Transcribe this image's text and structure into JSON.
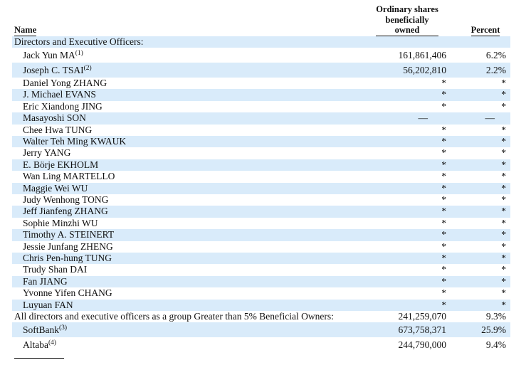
{
  "headers": {
    "name": "Name",
    "shares_line1": "Ordinary shares",
    "shares_line2": "beneficially",
    "shares_line3": "owned",
    "percent": "Percent"
  },
  "section_title": "Directors and Executive Officers:",
  "rows": [
    {
      "name": "Jack Yun MA",
      "sup": "(1)",
      "shares": "161,861,406",
      "percent": "6.2%"
    },
    {
      "name": "Joseph C. TSAI",
      "sup": "(2)",
      "shares": "56,202,810",
      "percent": "2.2%"
    },
    {
      "name": "Daniel Yong ZHANG",
      "sup": "",
      "shares": "*",
      "percent": "*"
    },
    {
      "name": "J. Michael EVANS",
      "sup": "",
      "shares": "*",
      "percent": "*"
    },
    {
      "name": "Eric Xiandong JING",
      "sup": "",
      "shares": "*",
      "percent": "*"
    },
    {
      "name": "Masayoshi SON",
      "sup": "",
      "shares": "—",
      "percent": "—"
    },
    {
      "name": "Chee Hwa TUNG",
      "sup": "",
      "shares": "*",
      "percent": "*"
    },
    {
      "name": "Walter Teh Ming KWAUK",
      "sup": "",
      "shares": "*",
      "percent": "*"
    },
    {
      "name": "Jerry YANG",
      "sup": "",
      "shares": "*",
      "percent": "*"
    },
    {
      "name": "E. Börje EKHOLM",
      "sup": "",
      "shares": "*",
      "percent": "*"
    },
    {
      "name": "Wan Ling MARTELLO",
      "sup": "",
      "shares": "*",
      "percent": "*"
    },
    {
      "name": "Maggie Wei WU",
      "sup": "",
      "shares": "*",
      "percent": "*"
    },
    {
      "name": "Judy Wenhong TONG",
      "sup": "",
      "shares": "*",
      "percent": "*"
    },
    {
      "name": "Jeff Jianfeng ZHANG",
      "sup": "",
      "shares": "*",
      "percent": "*"
    },
    {
      "name": "Sophie Minzhi WU",
      "sup": "",
      "shares": "*",
      "percent": "*"
    },
    {
      "name": "Timothy A. STEINERT",
      "sup": "",
      "shares": "*",
      "percent": "*"
    },
    {
      "name": "Jessie Junfang ZHENG",
      "sup": "",
      "shares": "*",
      "percent": "*"
    },
    {
      "name": "Chris Pen-hung TUNG",
      "sup": "",
      "shares": "*",
      "percent": "*"
    },
    {
      "name": "Trudy Shan DAI",
      "sup": "",
      "shares": "*",
      "percent": "*"
    },
    {
      "name": "Fan JIANG",
      "sup": "",
      "shares": "*",
      "percent": "*"
    },
    {
      "name": "Yvonne Yifen CHANG",
      "sup": "",
      "shares": "*",
      "percent": "*"
    },
    {
      "name": "Luyuan FAN",
      "sup": "",
      "shares": "*",
      "percent": "*"
    }
  ],
  "group_row": {
    "name": "All directors and executive officers as a group Greater than 5% Beneficial Owners:",
    "shares": "241,259,070",
    "percent": "9.3%"
  },
  "owners": [
    {
      "name": "SoftBank",
      "sup": "(3)",
      "shares": "673,758,371",
      "percent": "25.9%"
    },
    {
      "name": "Altaba",
      "sup": "(4)",
      "shares": "244,790,000",
      "percent": "9.4%"
    }
  ]
}
